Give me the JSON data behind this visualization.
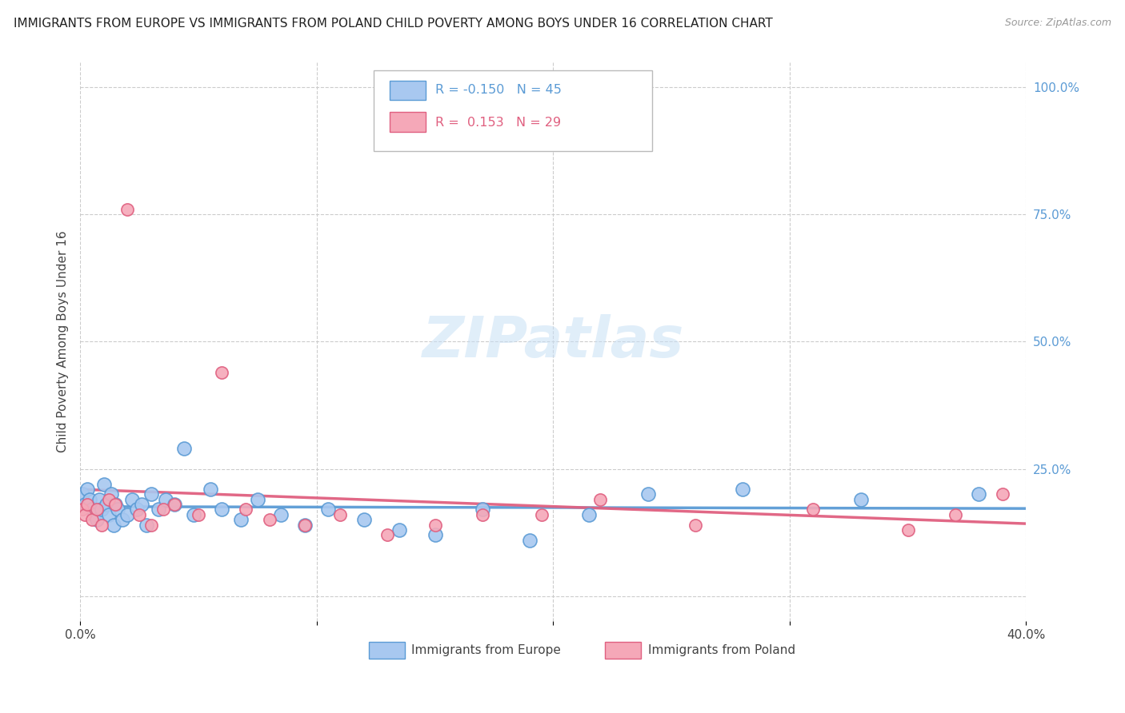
{
  "title": "IMMIGRANTS FROM EUROPE VS IMMIGRANTS FROM POLAND CHILD POVERTY AMONG BOYS UNDER 16 CORRELATION CHART",
  "source": "Source: ZipAtlas.com",
  "ylabel": "Child Poverty Among Boys Under 16",
  "legend1_label": "Immigrants from Europe",
  "legend2_label": "Immigrants from Poland",
  "R1": -0.15,
  "N1": 45,
  "R2": 0.153,
  "N2": 29,
  "color_europe": "#a8c8f0",
  "color_poland": "#f5a8b8",
  "color_europe_dark": "#5b9bd5",
  "color_poland_dark": "#e06080",
  "xlim": [
    0.0,
    0.4
  ],
  "ylim": [
    -0.05,
    1.05
  ],
  "ytick_vals": [
    0.0,
    0.25,
    0.5,
    0.75,
    1.0
  ],
  "ytick_labels": [
    "",
    "25.0%",
    "50.0%",
    "75.0%",
    "100.0%"
  ],
  "xtick_vals": [
    0.0,
    0.1,
    0.2,
    0.3,
    0.4
  ],
  "xtick_labels": [
    "0.0%",
    "",
    "",
    "",
    "40.0%"
  ],
  "europe_x": [
    0.001,
    0.002,
    0.003,
    0.004,
    0.005,
    0.006,
    0.007,
    0.008,
    0.009,
    0.01,
    0.011,
    0.012,
    0.013,
    0.014,
    0.015,
    0.016,
    0.018,
    0.02,
    0.022,
    0.024,
    0.026,
    0.028,
    0.03,
    0.033,
    0.036,
    0.04,
    0.044,
    0.048,
    0.055,
    0.06,
    0.068,
    0.075,
    0.085,
    0.095,
    0.105,
    0.12,
    0.135,
    0.15,
    0.17,
    0.19,
    0.215,
    0.24,
    0.28,
    0.33,
    0.38
  ],
  "europe_y": [
    0.2,
    0.18,
    0.21,
    0.19,
    0.17,
    0.16,
    0.15,
    0.19,
    0.17,
    0.22,
    0.18,
    0.16,
    0.2,
    0.14,
    0.18,
    0.17,
    0.15,
    0.16,
    0.19,
    0.17,
    0.18,
    0.14,
    0.2,
    0.17,
    0.19,
    0.18,
    0.29,
    0.16,
    0.21,
    0.17,
    0.15,
    0.19,
    0.16,
    0.14,
    0.17,
    0.15,
    0.13,
    0.12,
    0.17,
    0.11,
    0.16,
    0.2,
    0.21,
    0.19,
    0.2
  ],
  "poland_x": [
    0.001,
    0.002,
    0.003,
    0.005,
    0.007,
    0.009,
    0.012,
    0.015,
    0.02,
    0.025,
    0.03,
    0.035,
    0.04,
    0.05,
    0.06,
    0.07,
    0.08,
    0.095,
    0.11,
    0.13,
    0.15,
    0.17,
    0.195,
    0.22,
    0.26,
    0.31,
    0.35,
    0.37,
    0.39
  ],
  "poland_y": [
    0.17,
    0.16,
    0.18,
    0.15,
    0.17,
    0.14,
    0.19,
    0.18,
    0.76,
    0.16,
    0.14,
    0.17,
    0.18,
    0.16,
    0.44,
    0.17,
    0.15,
    0.14,
    0.16,
    0.12,
    0.14,
    0.16,
    0.16,
    0.19,
    0.14,
    0.17,
    0.13,
    0.16,
    0.2
  ]
}
